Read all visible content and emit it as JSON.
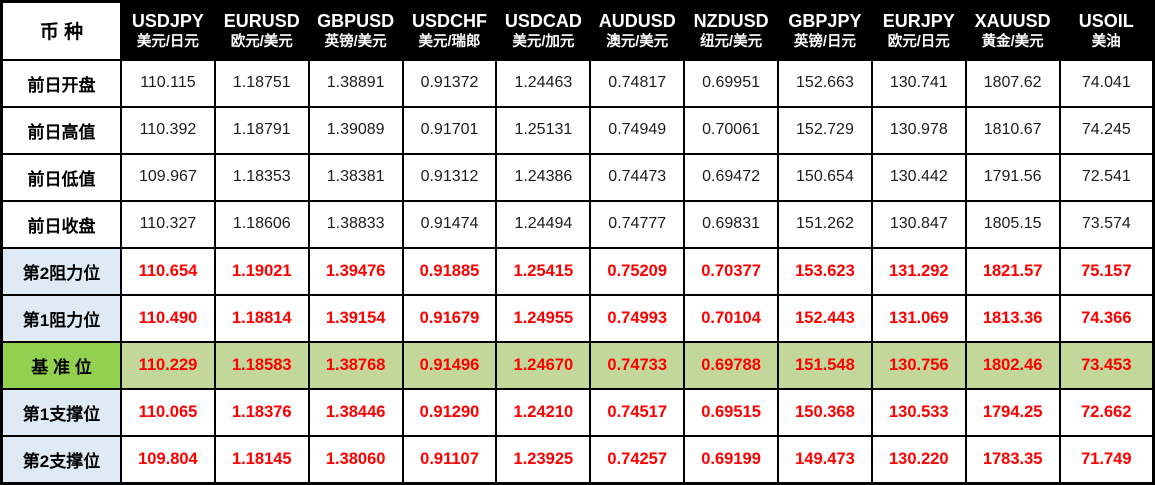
{
  "table": {
    "corner_label": "币 种",
    "columns": [
      {
        "symbol": "USDJPY",
        "name": "美元/日元"
      },
      {
        "symbol": "EURUSD",
        "name": "欧元/美元"
      },
      {
        "symbol": "GBPUSD",
        "name": "英镑/美元"
      },
      {
        "symbol": "USDCHF",
        "name": "美元/瑞郎"
      },
      {
        "symbol": "USDCAD",
        "name": "美元/加元"
      },
      {
        "symbol": "AUDUSD",
        "name": "澳元/美元"
      },
      {
        "symbol": "NZDUSD",
        "name": "纽元/美元"
      },
      {
        "symbol": "GBPJPY",
        "name": "英镑/日元"
      },
      {
        "symbol": "EURJPY",
        "name": "欧元/日元"
      },
      {
        "symbol": "XAUUSD",
        "name": "黄金/美元"
      },
      {
        "symbol": "USOIL",
        "name": "美油"
      }
    ],
    "rows": [
      {
        "label": "前日开盘",
        "type": "plain",
        "values": [
          "110.115",
          "1.18751",
          "1.38891",
          "0.91372",
          "1.24463",
          "0.74817",
          "0.69951",
          "152.663",
          "130.741",
          "1807.62",
          "74.041"
        ]
      },
      {
        "label": "前日高值",
        "type": "plain",
        "values": [
          "110.392",
          "1.18791",
          "1.39089",
          "0.91701",
          "1.25131",
          "0.74949",
          "0.70061",
          "152.729",
          "130.978",
          "1810.67",
          "74.245"
        ]
      },
      {
        "label": "前日低值",
        "type": "plain",
        "values": [
          "109.967",
          "1.18353",
          "1.38381",
          "0.91312",
          "1.24386",
          "0.74473",
          "0.69472",
          "150.654",
          "130.442",
          "1791.56",
          "72.541"
        ]
      },
      {
        "label": "前日收盘",
        "type": "plain",
        "values": [
          "110.327",
          "1.18606",
          "1.38833",
          "0.91474",
          "1.24494",
          "0.74777",
          "0.69831",
          "151.262",
          "130.847",
          "1805.15",
          "73.574"
        ]
      },
      {
        "label": "第2阻力位",
        "type": "resistance",
        "values": [
          "110.654",
          "1.19021",
          "1.39476",
          "0.91885",
          "1.25415",
          "0.75209",
          "0.70377",
          "153.623",
          "131.292",
          "1821.57",
          "75.157"
        ]
      },
      {
        "label": "第1阻力位",
        "type": "resistance",
        "values": [
          "110.490",
          "1.18814",
          "1.39154",
          "0.91679",
          "1.24955",
          "0.74993",
          "0.70104",
          "152.443",
          "131.069",
          "1813.36",
          "74.366"
        ]
      },
      {
        "label": "基 准 位",
        "type": "pivot",
        "values": [
          "110.229",
          "1.18583",
          "1.38768",
          "0.91496",
          "1.24670",
          "0.74733",
          "0.69788",
          "151.548",
          "130.756",
          "1802.46",
          "73.453"
        ]
      },
      {
        "label": "第1支撑位",
        "type": "support",
        "values": [
          "110.065",
          "1.18376",
          "1.38446",
          "0.91290",
          "1.24210",
          "0.74517",
          "0.69515",
          "150.368",
          "130.533",
          "1794.25",
          "72.662"
        ]
      },
      {
        "label": "第2支撑位",
        "type": "support",
        "values": [
          "109.804",
          "1.18145",
          "1.38060",
          "0.91107",
          "1.23925",
          "0.74257",
          "0.69199",
          "149.473",
          "130.220",
          "1783.35",
          "71.749"
        ]
      }
    ],
    "colors": {
      "header_bg": "#000000",
      "header_text": "#FFFFFF",
      "label_blue_bg": "#DEEAF4",
      "pivot_label_bg": "#92D050",
      "pivot_row_bg": "#C4D79B",
      "value_red": "#FF0000",
      "border": "#000000"
    }
  }
}
